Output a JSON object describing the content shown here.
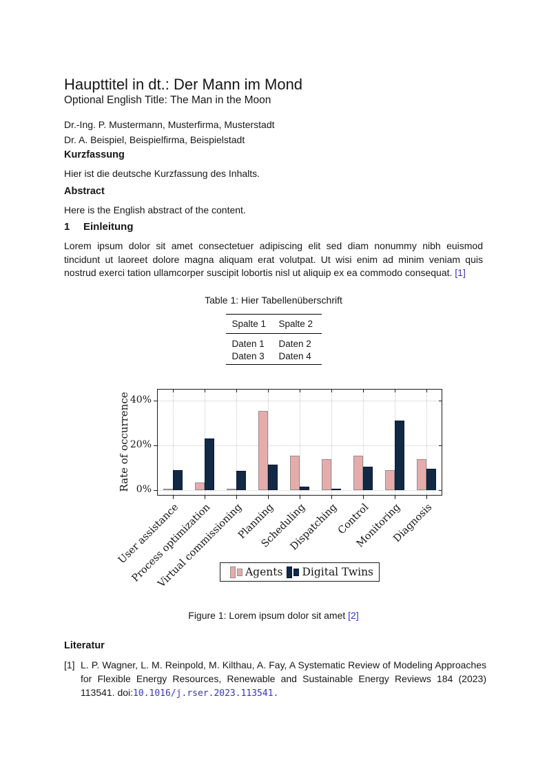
{
  "document": {
    "title": "Haupttitel in dt.: Der Mann im Mond",
    "subtitle": "Optional English Title: The Man in the Moon",
    "authors": [
      "Dr.-Ing. P. Mustermann, Musterfirma, Musterstadt",
      "Dr. A. Beispiel, Beispielfirma, Beispielstadt"
    ],
    "kurzfassung_heading": "Kurzfassung",
    "kurzfassung_text": "Hier ist die deutsche Kurzfassung des Inhalts.",
    "abstract_heading": "Abstract",
    "abstract_text": "Here is the English abstract of the content.",
    "section1_number": "1",
    "section1_heading": "Einleitung",
    "section1_paragraph": "Lorem ipsum dolor sit amet consectetuer adipiscing elit sed diam nonummy nibh euismod tincidunt ut laoreet dolore magna aliquam erat volutpat. Ut wisi enim ad minim veniam quis nostrud exerci tation ullamcorper suscipit lobortis nisl ut aliquip ex ea commodo consequat.",
    "section1_citation": "[1]"
  },
  "table": {
    "caption": "Table 1: Hier Tabellenüberschrift",
    "headers": [
      "Spalte 1",
      "Spalte 2"
    ],
    "rows": [
      [
        "Daten 1",
        "Daten 2"
      ],
      [
        "Daten 3",
        "Daten 4"
      ]
    ]
  },
  "chart_data": {
    "type": "bar",
    "categories": [
      "User assistance",
      "Process optimization",
      "Virtual commissioning",
      "Planning",
      "Scheduling",
      "Dispatching",
      "Control",
      "Monitoring",
      "Diagnosis"
    ],
    "series": [
      {
        "name": "Agents",
        "values": [
          0.5,
          3.5,
          0.5,
          35.5,
          15.5,
          14,
          15.5,
          9,
          14
        ],
        "fill": "#e6acac",
        "border": "#8f8f8f"
      },
      {
        "name": "Digital Twins",
        "values": [
          9,
          23,
          8.5,
          11.5,
          1.5,
          0.5,
          10.5,
          31,
          9.5
        ],
        "fill": "#122945",
        "border": "#0a1830"
      }
    ],
    "title": "",
    "xlabel": "",
    "ylabel": "Rate of occurrence",
    "yticks": [
      0,
      20,
      40
    ],
    "ytick_labels": [
      "0%",
      "20%",
      "40%"
    ],
    "ylim": [
      0,
      45
    ],
    "unit": "percent",
    "grid": "dotted",
    "legend_position": "below-chart"
  },
  "figure": {
    "caption": "Figure 1: Lorem ipsum dolor sit amet",
    "citation": "[2]"
  },
  "references": {
    "heading": "Literatur",
    "items": [
      {
        "label": "[1]",
        "text": "L. P. Wagner, L. M. Reinpold, M. Kilthau, A. Fay,  A Systematic Review of Modeling Approaches for Flexible Energy Resources, Renewable and Sustainable Energy Reviews 184 (2023) 113541. ",
        "doi_label": "doi:",
        "doi_link": "10.1016/j.rser.2023.113541."
      }
    ]
  },
  "colors": {
    "link": "#3636b2",
    "agents_fill": "#e6acac",
    "agents_border": "#8f8f8f",
    "digital_twins_fill": "#122945",
    "digital_twins_border": "#0a1830",
    "axis_frame": "#1a1a1a",
    "grid": "#c6c6c6"
  }
}
